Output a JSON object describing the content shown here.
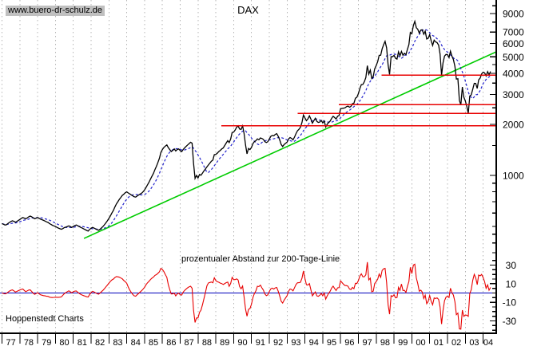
{
  "header": {
    "title": "DAX",
    "website": "www.buero-dr-schulz.de"
  },
  "labels": {
    "oscillator": "prozentualer Abstand zur 200-Tage-Linie",
    "brand": "Hoppenstedt Charts"
  },
  "colors": {
    "price": "#000000",
    "moving_average": "#2222cc",
    "trendline": "#00cc00",
    "horizontal_lines": "#e80000",
    "oscillator": "#e80000",
    "zero_line": "#0000bb",
    "grid": "#b4b4b4",
    "axis": "#000000",
    "watermark_bg": "#c0c0c0"
  },
  "x_axis": {
    "years": [
      "77",
      "78",
      "79",
      "80",
      "81",
      "82",
      "83",
      "84",
      "85",
      "86",
      "87",
      "88",
      "89",
      "90",
      "91",
      "92",
      "93",
      "94",
      "95",
      "96",
      "97",
      "98",
      "99",
      "00",
      "01",
      "02",
      "03",
      "04"
    ]
  },
  "y_axis": {
    "price_tick_labels": [
      9000,
      7000,
      6000,
      5000,
      4000,
      3000,
      2000,
      1000
    ],
    "price_minor_ticks": [
      10000,
      8000,
      4500,
      3500,
      2500,
      1500,
      900,
      800,
      700,
      600,
      500,
      450,
      400,
      350
    ],
    "oscillator_tick_labels": [
      30,
      10,
      -10,
      -30
    ],
    "oscillator_minor_step": 5
  },
  "chart_data": [
    {
      "type": "line",
      "title": "DAX",
      "panel": "price",
      "y_scale": "log",
      "ylim": [
        350,
        10800
      ],
      "x_start_year": 1977.0,
      "frequency": "monthly",
      "x_end_year_approx": 2004.4,
      "series": [
        {
          "name": "DAX (approx. monthly)",
          "color": "#000000",
          "values": [
            520,
            515,
            510,
            512,
            520,
            528,
            535,
            540,
            536,
            530,
            535,
            542,
            550,
            558,
            565,
            560,
            555,
            562,
            570,
            576,
            570,
            562,
            555,
            560,
            565,
            558,
            552,
            548,
            543,
            538,
            532,
            528,
            520,
            514,
            508,
            504,
            500,
            494,
            489,
            485,
            481,
            486,
            492,
            496,
            500,
            504,
            499,
            494,
            500,
            506,
            510,
            505,
            499,
            494,
            489,
            484,
            479,
            474,
            470,
            480,
            488,
            494,
            489,
            484,
            479,
            475,
            481,
            490,
            500,
            512,
            526,
            540,
            558,
            578,
            600,
            622,
            650,
            678,
            700,
            722,
            742,
            762,
            775,
            790,
            800,
            788,
            778,
            768,
            758,
            748,
            745,
            756,
            766,
            776,
            786,
            800,
            820,
            850,
            880,
            912,
            950,
            990,
            1030,
            1082,
            1132,
            1192,
            1262,
            1366,
            1420,
            1462,
            1488,
            1512,
            1458,
            1418,
            1382,
            1404,
            1432,
            1392,
            1422,
            1432,
            1400,
            1380,
            1422,
            1452,
            1482,
            1512,
            1540,
            1568,
            1548,
            1180,
            960,
            1000,
            966,
            1012,
            1002,
            1032,
            1062,
            1092,
            1122,
            1152,
            1182,
            1212,
            1232,
            1327,
            1330,
            1352,
            1382,
            1404,
            1432,
            1452,
            1502,
            1552,
            1602,
            1562,
            1642,
            1790,
            1800,
            1852,
            1920,
            1958,
            1878,
            1868,
            1958,
            1770,
            1510,
            1340,
            1442,
            1420,
            1462,
            1542,
            1582,
            1602,
            1642,
            1622,
            1662,
            1650,
            1630,
            1582,
            1562,
            1578,
            1640,
            1700,
            1720,
            1712,
            1742,
            1762,
            1700,
            1620,
            1520,
            1480,
            1522,
            1545,
            1572,
            1642,
            1672,
            1652,
            1622,
            1682,
            1762,
            1832,
            1872,
            1922,
            2052,
            2268,
            2180,
            2100,
            2152,
            2244,
            2152,
            2032,
            2102,
            2172,
            2082,
            2052,
            2062,
            2107,
            2042,
            2092,
            1930,
            2002,
            2052,
            2092,
            2172,
            2232,
            2192,
            2152,
            2232,
            2254,
            2470,
            2482,
            2490,
            2502,
            2542,
            2562,
            2522,
            2552,
            2652,
            2662,
            2850,
            2889,
            3035,
            3260,
            3428,
            3438,
            3563,
            3770,
            4438,
            3950,
            4170,
            3727,
            3830,
            4250,
            4442,
            4695,
            5100,
            5105,
            5570,
            5897,
            6171,
            5650,
            4475,
            3940,
            5010,
            5002,
            5100,
            4900,
            4850,
            5350,
            5070,
            5380,
            5100,
            5250,
            5150,
            5525,
            5896,
            6958,
            6835,
            7644,
            8100,
            7415,
            7265,
            6898,
            7190,
            7216,
            6798,
            7078,
            6372,
            6434,
            6750,
            6208,
            5830,
            6264,
            6123,
            6058,
            5861,
            5188,
            3900,
            4610,
            5050,
            5160,
            5150,
            4950,
            5397,
            5042,
            4818,
            4383,
            3700,
            3712,
            2769,
            2600,
            3320,
            2893,
            2748,
            2547,
            2320,
            2942,
            2982,
            3220,
            3488,
            3484,
            3256,
            3655,
            3746,
            3965,
            4058,
            4018,
            3860,
            4090,
            3920,
            4100
          ]
        }
      ],
      "moving_average": {
        "name": "200-Tage-Linie",
        "window_months": 10,
        "color": "#2222cc",
        "line_style": "dashed"
      },
      "trendline": {
        "color": "#00cc00",
        "from": {
          "year": 1981.6,
          "value": 425
        },
        "to": {
          "year": 2004.74,
          "value": 5350
        }
      },
      "horizontal_lines": [
        {
          "value": 3900,
          "from_year": 1998.3
        },
        {
          "value": 2615,
          "from_year": 1995.9
        },
        {
          "value": 2320,
          "from_year": 1993.6
        },
        {
          "value": 1960,
          "from_year": 1989.3
        }
      ]
    },
    {
      "type": "line",
      "panel": "oscillator",
      "label": "prozentualer Abstand zur 200-Tage-Linie",
      "color": "#e80000",
      "zero_line_color": "#0000bb",
      "ylim": [
        -43,
        38
      ],
      "derived": "(price - 200d-MA) / 200d-MA * 100, computed from the price series above"
    }
  ]
}
